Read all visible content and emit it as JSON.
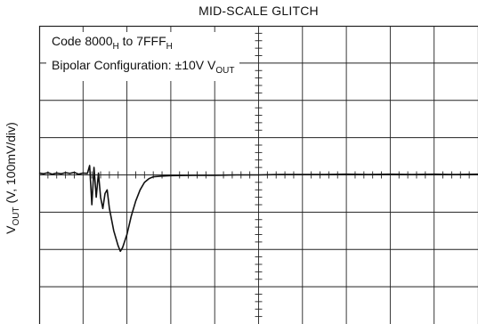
{
  "chart_data": {
    "type": "line",
    "title": "MID-SCALE GLITCH",
    "ylabel": {
      "main": "V",
      "sub": "OUT",
      "rest": " (V, 100mV/div)"
    },
    "annotation": {
      "line1": {
        "a": "Code 8000",
        "a_sub": "H",
        "b": " to 7FFF",
        "b_sub": "H"
      },
      "line2": {
        "a": "Bipolar Configuration: ±10V V",
        "a_sub": "OUT"
      }
    },
    "grid": {
      "x_divisions": 10,
      "y_divisions": 8,
      "minor_ticks_per_division": 5
    },
    "xlim": [
      0,
      10
    ],
    "ylim": [
      -4,
      4
    ],
    "series": [
      {
        "values": [
          [
            0.0,
            0.05
          ],
          [
            0.1,
            0.03
          ],
          [
            0.2,
            0.06
          ],
          [
            0.3,
            0.02
          ],
          [
            0.4,
            0.05
          ],
          [
            0.5,
            0.03
          ],
          [
            0.6,
            0.06
          ],
          [
            0.7,
            0.04
          ],
          [
            0.8,
            0.07
          ],
          [
            0.9,
            0.02
          ],
          [
            1.0,
            0.05
          ],
          [
            1.1,
            0.04
          ],
          [
            1.15,
            0.25
          ],
          [
            1.2,
            -0.8
          ],
          [
            1.25,
            0.2
          ],
          [
            1.3,
            -0.6
          ],
          [
            1.35,
            0.05
          ],
          [
            1.4,
            -0.6
          ],
          [
            1.45,
            -0.9
          ],
          [
            1.5,
            -0.5
          ],
          [
            1.55,
            -0.4
          ],
          [
            1.6,
            -0.9
          ],
          [
            1.7,
            -1.5
          ],
          [
            1.8,
            -1.9
          ],
          [
            1.85,
            -2.05
          ],
          [
            1.9,
            -1.95
          ],
          [
            2.0,
            -1.6
          ],
          [
            2.1,
            -1.1
          ],
          [
            2.2,
            -0.7
          ],
          [
            2.3,
            -0.4
          ],
          [
            2.4,
            -0.2
          ],
          [
            2.5,
            -0.1
          ],
          [
            2.6,
            -0.05
          ],
          [
            2.7,
            -0.04
          ],
          [
            2.8,
            -0.03
          ],
          [
            3.0,
            -0.02
          ],
          [
            3.5,
            -0.01
          ],
          [
            4.0,
            -0.01
          ],
          [
            4.5,
            0.0
          ],
          [
            5.0,
            0.0
          ],
          [
            5.5,
            0.01
          ],
          [
            6.0,
            0.01
          ],
          [
            6.5,
            0.01
          ],
          [
            7.0,
            0.02
          ],
          [
            7.5,
            0.01
          ],
          [
            8.0,
            0.02
          ],
          [
            8.5,
            0.01
          ],
          [
            9.0,
            0.02
          ],
          [
            9.5,
            0.01
          ],
          [
            10.0,
            0.02
          ]
        ]
      }
    ],
    "colors": {
      "trace": "#111111",
      "grid": "#222222",
      "background": "#ffffff"
    }
  }
}
